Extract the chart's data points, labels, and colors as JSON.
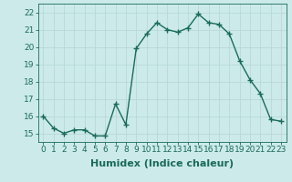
{
  "x": [
    0,
    1,
    2,
    3,
    4,
    5,
    6,
    7,
    8,
    9,
    10,
    11,
    12,
    13,
    14,
    15,
    16,
    17,
    18,
    19,
    20,
    21,
    22,
    23
  ],
  "y": [
    16.0,
    15.3,
    15.0,
    15.2,
    15.2,
    14.85,
    14.85,
    16.7,
    15.5,
    19.9,
    20.75,
    21.4,
    21.0,
    20.85,
    21.1,
    21.9,
    21.4,
    21.3,
    20.75,
    19.2,
    18.1,
    17.3,
    15.8,
    15.7
  ],
  "line_color": "#1a6b5a",
  "marker": "+",
  "marker_size": 4,
  "marker_lw": 1.0,
  "bg_color": "#cceaea",
  "grid_color": "#b8d8d8",
  "xlabel": "Humidex (Indice chaleur)",
  "ylim": [
    14.5,
    22.5
  ],
  "xlim": [
    -0.5,
    23.5
  ],
  "yticks": [
    15,
    16,
    17,
    18,
    19,
    20,
    21,
    22
  ],
  "xticks": [
    0,
    1,
    2,
    3,
    4,
    5,
    6,
    7,
    8,
    9,
    10,
    11,
    12,
    13,
    14,
    15,
    16,
    17,
    18,
    19,
    20,
    21,
    22,
    23
  ],
  "tick_color": "#1a6b5a",
  "label_fontsize": 8,
  "tick_fontsize": 6.5,
  "line_width": 1.0
}
